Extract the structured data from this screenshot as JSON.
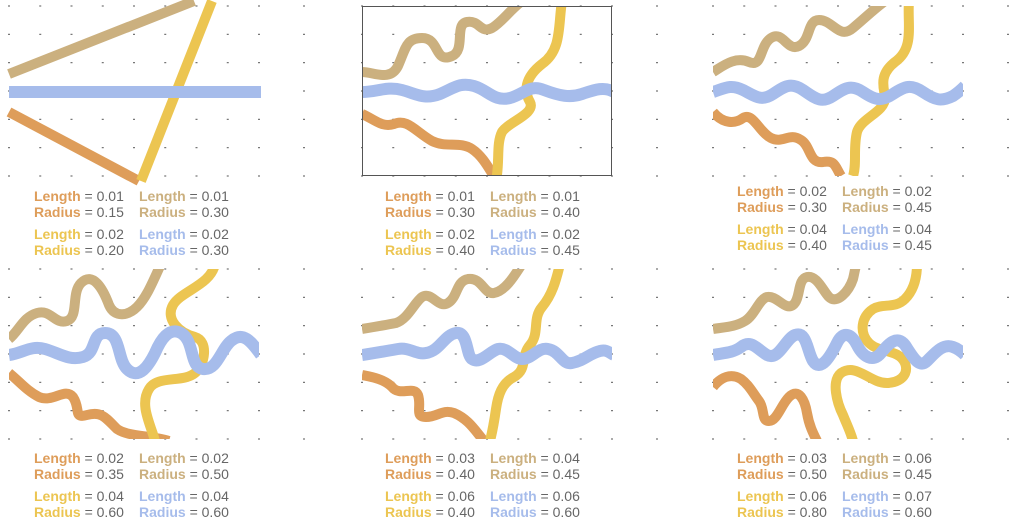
{
  "colors": {
    "orange": "#de9d5a",
    "tan": "#cbb07f",
    "yellow": "#ecc551",
    "blue": "#a6bceb",
    "frame": "#555555",
    "tick": "#555555",
    "text": "#666666"
  },
  "labels": {
    "length": "Length",
    "radius": "Radius"
  },
  "panels": [
    {
      "framed": false,
      "legend": [
        {
          "color": "orange",
          "length_value": "= 0.01",
          "radius_value": "= 0.15"
        },
        {
          "color": "tan",
          "length_value": "= 0.01",
          "radius_value": "= 0.30"
        },
        {
          "color": "yellow",
          "length_value": "= 0.02",
          "radius_value": "= 0.20"
        },
        {
          "color": "blue",
          "length_value": "= 0.02",
          "radius_value": "= 0.30"
        }
      ]
    },
    {
      "framed": true,
      "legend": [
        {
          "color": "orange",
          "length_value": "= 0.01",
          "radius_value": "= 0.30"
        },
        {
          "color": "tan",
          "length_value": "= 0.01",
          "radius_value": "= 0.40"
        },
        {
          "color": "yellow",
          "length_value": "= 0.02",
          "radius_value": "= 0.40"
        },
        {
          "color": "blue",
          "length_value": "= 0.02",
          "radius_value": "= 0.45"
        }
      ]
    },
    {
      "framed": false,
      "legend": [
        {
          "color": "orange",
          "length_value": "= 0.02",
          "radius_value": "= 0.30"
        },
        {
          "color": "tan",
          "length_value": "= 0.02",
          "radius_value": "= 0.45"
        },
        {
          "color": "yellow",
          "length_value": "= 0.04",
          "radius_value": "= 0.40"
        },
        {
          "color": "blue",
          "length_value": "= 0.04",
          "radius_value": "= 0.45"
        }
      ]
    },
    {
      "framed": false,
      "legend": [
        {
          "color": "orange",
          "length_value": "= 0.02",
          "radius_value": "= 0.35"
        },
        {
          "color": "tan",
          "length_value": "= 0.02",
          "radius_value": "= 0.50"
        },
        {
          "color": "yellow",
          "length_value": "= 0.04",
          "radius_value": "= 0.60"
        },
        {
          "color": "blue",
          "length_value": "= 0.04",
          "radius_value": "= 0.60"
        }
      ]
    },
    {
      "framed": false,
      "legend": [
        {
          "color": "orange",
          "length_value": "= 0.03",
          "radius_value": "= 0.40"
        },
        {
          "color": "tan",
          "length_value": "= 0.04",
          "radius_value": "= 0.45"
        },
        {
          "color": "yellow",
          "length_value": "= 0.06",
          "radius_value": "= 0.40"
        },
        {
          "color": "blue",
          "length_value": "= 0.06",
          "radius_value": "= 0.60"
        }
      ]
    },
    {
      "framed": false,
      "legend": [
        {
          "color": "orange",
          "length_value": "= 0.03",
          "radius_value": "= 0.50"
        },
        {
          "color": "tan",
          "length_value": "= 0.06",
          "radius_value": "= 0.45"
        },
        {
          "color": "yellow",
          "length_value": "= 0.06",
          "radius_value": "= 0.80"
        },
        {
          "color": "blue",
          "length_value": "= 0.07",
          "radius_value": "= 0.60"
        }
      ]
    }
  ]
}
